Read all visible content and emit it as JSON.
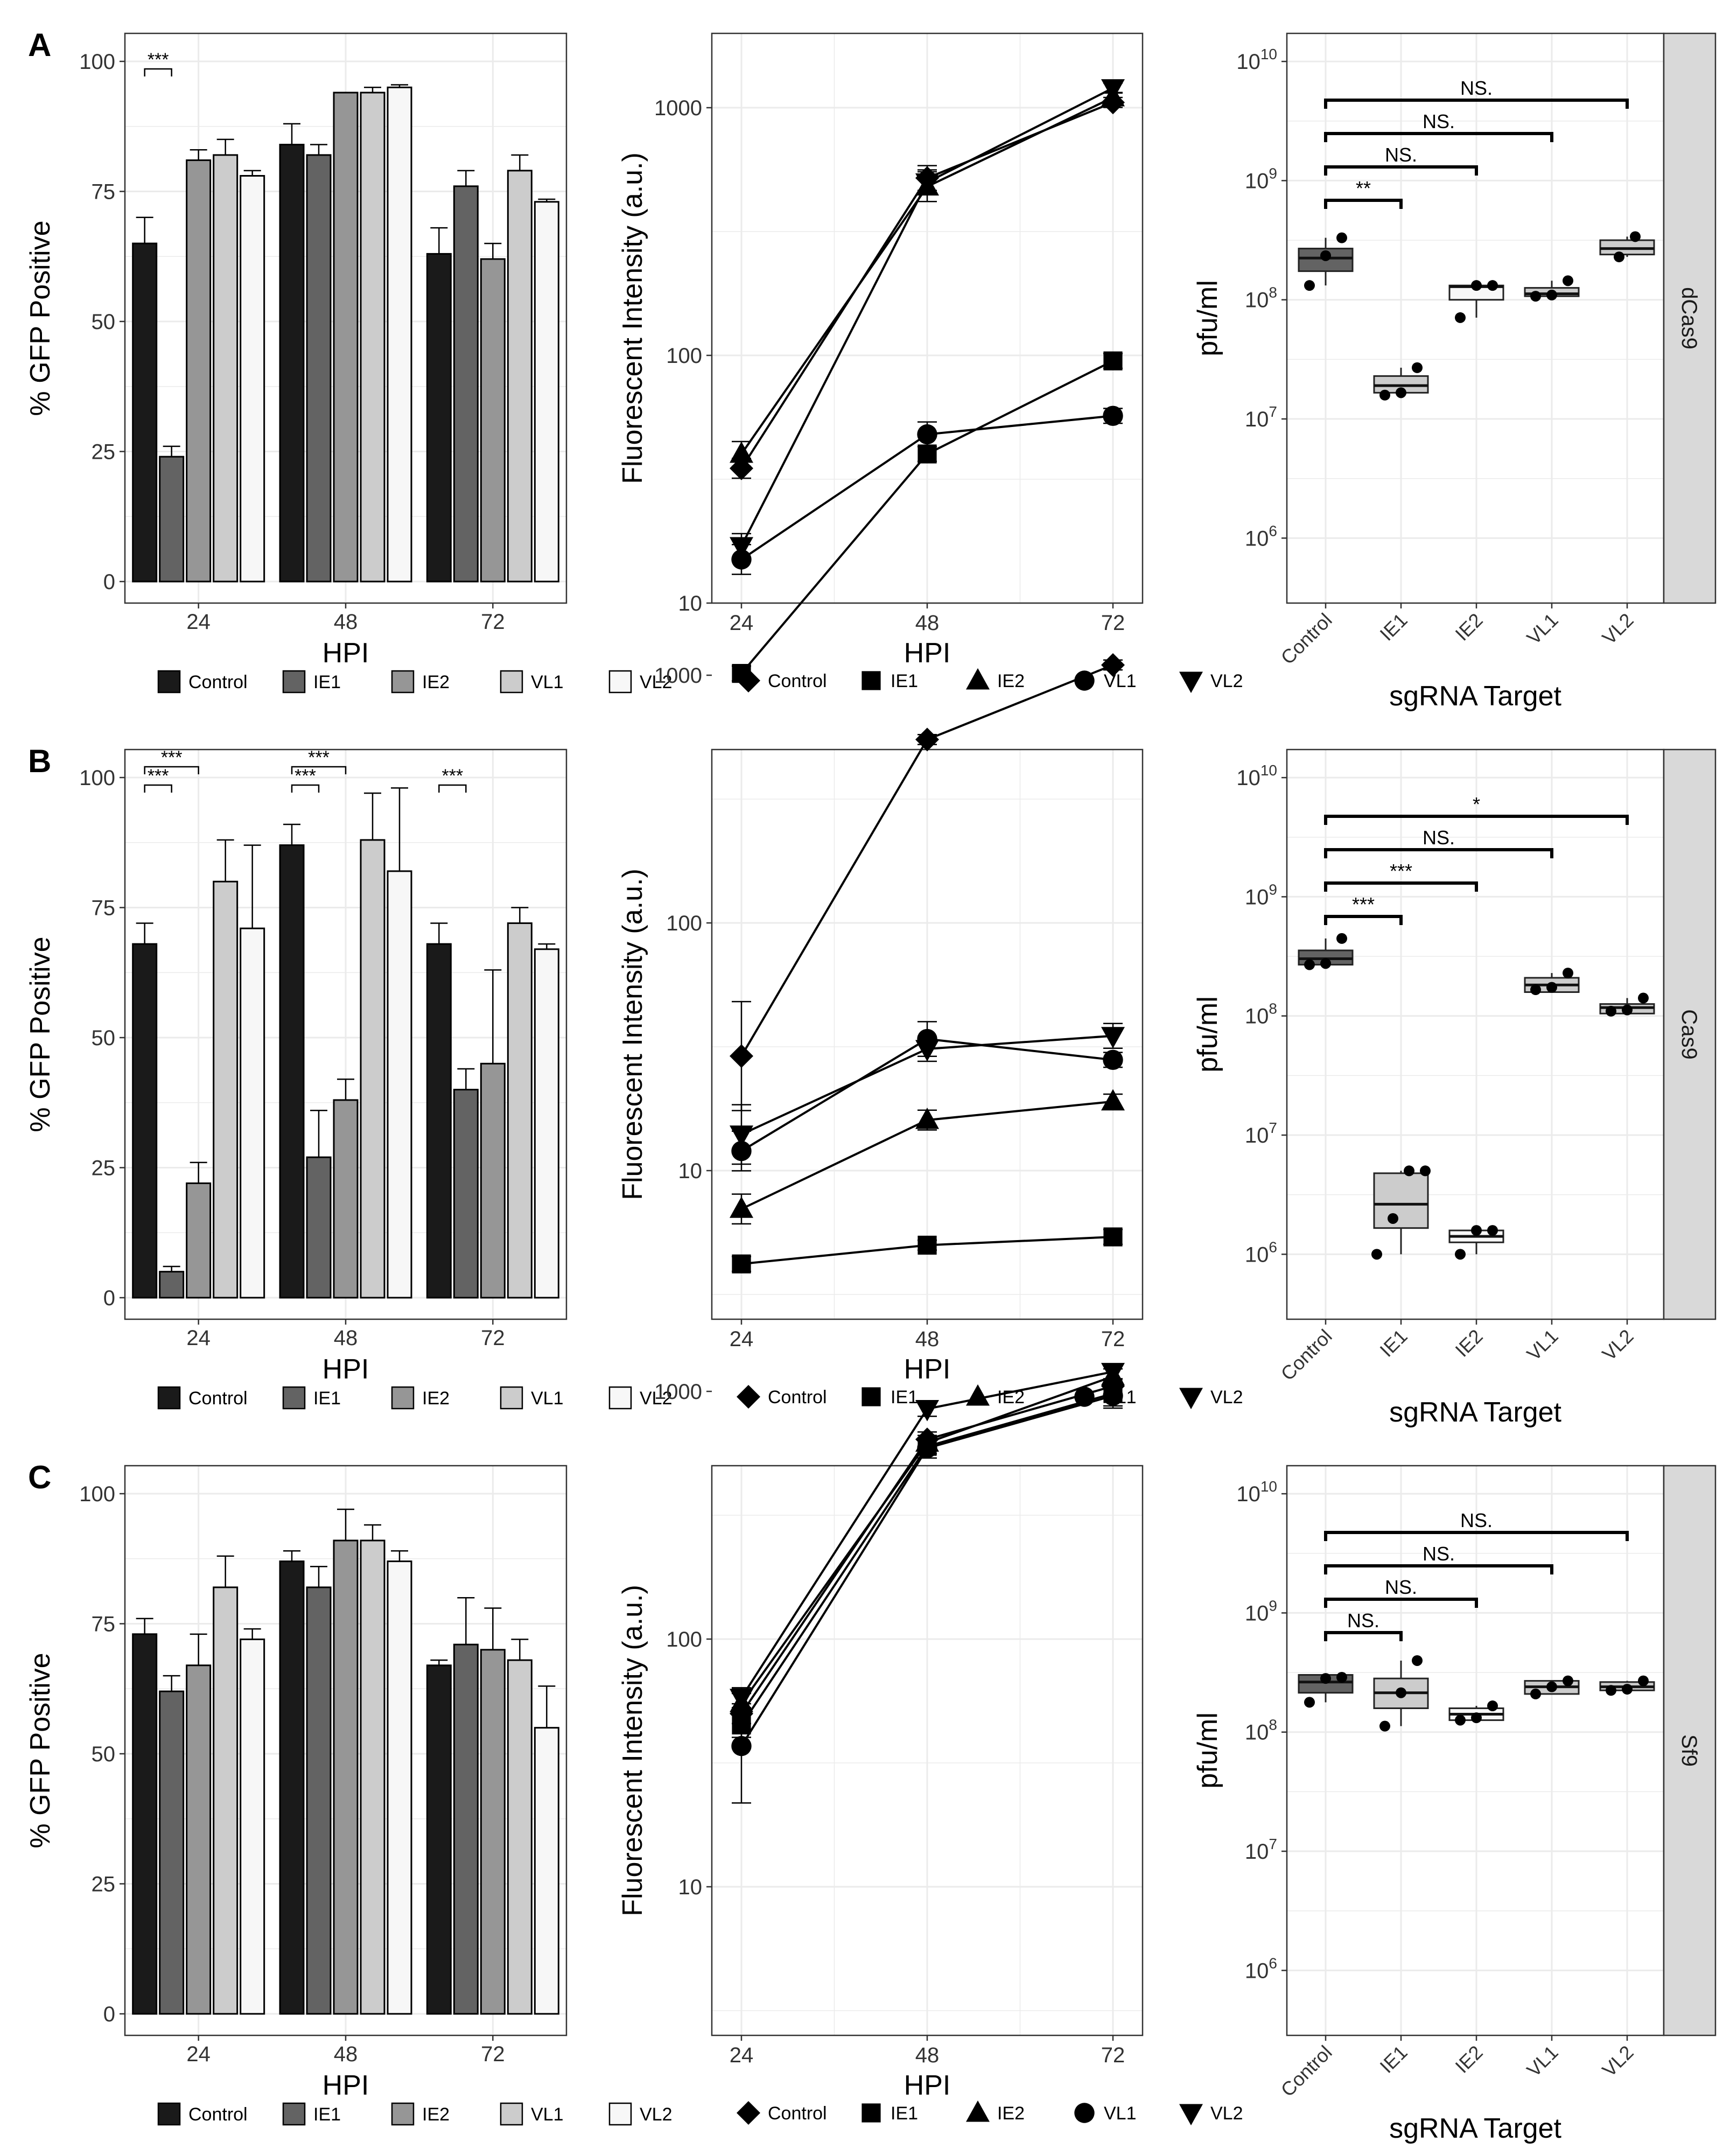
{
  "figure": {
    "row_labels": [
      "A",
      "B",
      "C"
    ],
    "facet_strips": [
      "dCas9",
      "Cas9",
      "Sf9"
    ]
  },
  "colors": {
    "Control": "#1a1a1a",
    "IE1": "#636363",
    "IE2": "#969696",
    "VL1": "#cccccc",
    "VL2": "#f7f7f7",
    "grid": "#ebebeb",
    "strip": "#d9d9d9"
  },
  "chart_data": [
    {
      "id": "A-bar",
      "type": "bar",
      "row": 0,
      "ylabel": "% GFP Positive",
      "xlabel": "HPI",
      "categories": [
        "24",
        "48",
        "72"
      ],
      "ylim": [
        0,
        100
      ],
      "yticks": [
        "0",
        "25",
        "50",
        "75",
        "100"
      ],
      "legend": [
        "Control",
        "IE1",
        "IE2",
        "VL1",
        "VL2"
      ],
      "series": [
        {
          "name": "Control",
          "values": [
            65,
            84,
            63
          ],
          "errors": [
            5,
            4,
            5
          ]
        },
        {
          "name": "IE1",
          "values": [
            24,
            82,
            76
          ],
          "errors": [
            2,
            2,
            3
          ]
        },
        {
          "name": "IE2",
          "values": [
            81,
            94,
            62
          ],
          "errors": [
            2,
            0,
            3
          ]
        },
        {
          "name": "VL1",
          "values": [
            82,
            94,
            79
          ],
          "errors": [
            3,
            1,
            3
          ]
        },
        {
          "name": "VL2",
          "values": [
            78,
            95,
            73
          ],
          "errors": [
            1,
            0.5,
            0.5
          ]
        }
      ],
      "annotations": [
        {
          "text": "***",
          "category": 0,
          "from": 0,
          "to": 1,
          "level": 1
        }
      ]
    },
    {
      "id": "A-line",
      "type": "line",
      "row": 0,
      "ylabel": "Fluorescent Intensity (a.u.)",
      "xlabel": "HPI",
      "x": [
        "24",
        "48",
        "72"
      ],
      "yscale": "log",
      "ylim": [
        1,
        3.3
      ],
      "yticks": [
        "10",
        "100",
        "1000"
      ],
      "legend": [
        "Control",
        "IE1",
        "IE2",
        "VL1",
        "VL2"
      ],
      "series": [
        {
          "name": "Control",
          "shape": "diamond",
          "values": [
            35,
            520,
            1050
          ],
          "err_log": [
            0.04,
            0.05,
            0.02
          ]
        },
        {
          "name": "IE1",
          "shape": "square",
          "values": [
            5.2,
            40,
            95
          ],
          "err_log": [
            0.03,
            0.03,
            0.03
          ]
        },
        {
          "name": "IE2",
          "shape": "triangle",
          "values": [
            40,
            480,
            1100
          ],
          "err_log": [
            0.05,
            0.06,
            0.02
          ]
        },
        {
          "name": "VL1",
          "shape": "circle",
          "values": [
            15,
            48,
            57
          ],
          "err_log": [
            0.06,
            0.05,
            0.03
          ]
        },
        {
          "name": "VL2",
          "shape": "triangle-down",
          "values": [
            17,
            500,
            1200
          ],
          "err_log": [
            0.05,
            0.05,
            0.02
          ]
        }
      ]
    },
    {
      "id": "A-box",
      "type": "box",
      "row": 0,
      "ylabel": "pfu/ml",
      "xlabel": "sgRNA Target",
      "yscale": "log",
      "ylim": [
        5.5,
        10.1
      ],
      "ytick_exponents": [
        "6",
        "7",
        "8",
        "9",
        "10"
      ],
      "ytick_base": "10",
      "categories": [
        "Control",
        "IE1",
        "IE2",
        "VL1",
        "VL2"
      ],
      "boxes": [
        {
          "name": "Control",
          "q1": 8.24,
          "median": 8.35,
          "q3": 8.43,
          "points": [
            8.12,
            8.37,
            8.52
          ]
        },
        {
          "name": "IE1",
          "q1": 7.22,
          "median": 7.28,
          "q3": 7.36,
          "points": [
            7.2,
            7.22,
            7.43
          ]
        },
        {
          "name": "IE2",
          "q1": 8.0,
          "median": 8.11,
          "q3": 8.12,
          "points": [
            7.85,
            8.12,
            8.12
          ]
        },
        {
          "name": "VL1",
          "q1": 8.03,
          "median": 8.05,
          "q3": 8.1,
          "points": [
            8.03,
            8.04,
            8.16
          ]
        },
        {
          "name": "VL2",
          "q1": 8.38,
          "median": 8.43,
          "q3": 8.5,
          "points": [
            8.36,
            8.53
          ]
        }
      ],
      "annotations": [
        {
          "text": "**",
          "to": 1,
          "level": 0
        },
        {
          "text": "NS.",
          "to": 2,
          "level": 1
        },
        {
          "text": "NS.",
          "to": 3,
          "level": 2
        },
        {
          "text": "NS.",
          "to": 4,
          "level": 3
        }
      ]
    },
    {
      "id": "B-bar",
      "type": "bar",
      "row": 1,
      "ylabel": "% GFP Positive",
      "xlabel": "HPI",
      "categories": [
        "24",
        "48",
        "72"
      ],
      "ylim": [
        0,
        100
      ],
      "yticks": [
        "0",
        "25",
        "50",
        "75",
        "100"
      ],
      "legend": [
        "Control",
        "IE1",
        "IE2",
        "VL1",
        "VL2"
      ],
      "series": [
        {
          "name": "Control",
          "values": [
            68,
            87,
            68
          ],
          "errors": [
            4,
            4,
            4
          ]
        },
        {
          "name": "IE1",
          "values": [
            5,
            27,
            40
          ],
          "errors": [
            1,
            9,
            4
          ]
        },
        {
          "name": "IE2",
          "values": [
            22,
            38,
            45
          ],
          "errors": [
            4,
            4,
            18
          ]
        },
        {
          "name": "VL1",
          "values": [
            80,
            88,
            72
          ],
          "errors": [
            8,
            9,
            3
          ]
        },
        {
          "name": "VL2",
          "values": [
            71,
            82,
            67
          ],
          "errors": [
            16,
            16,
            1
          ]
        }
      ],
      "annotations": [
        {
          "text": "***",
          "category": 0,
          "from": 0,
          "to": 1,
          "level": 1
        },
        {
          "text": "***",
          "category": 0,
          "from": 0,
          "to": 2,
          "level": 2
        },
        {
          "text": "***",
          "category": 1,
          "from": 0,
          "to": 1,
          "level": 1
        },
        {
          "text": "***",
          "category": 1,
          "from": 0,
          "to": 2,
          "level": 2
        },
        {
          "text": "***",
          "category": 2,
          "from": 0,
          "to": 1,
          "level": 1
        }
      ]
    },
    {
      "id": "B-line",
      "type": "line",
      "row": 1,
      "ylabel": "Fluorescent Intensity (a.u.)",
      "xlabel": "HPI",
      "x": [
        "24",
        "48",
        "72"
      ],
      "yscale": "log",
      "ylim": [
        0.4,
        2.7
      ],
      "yticks": [
        "10",
        "100",
        "1000"
      ],
      "legend": [
        "Control",
        "IE1",
        "IE2",
        "VL1",
        "VL2"
      ],
      "series": [
        {
          "name": "Control",
          "shape": "diamond",
          "values": [
            29,
            550,
            1100
          ],
          "err_log": [
            0.22,
            0.02,
            0.02
          ]
        },
        {
          "name": "IE1",
          "shape": "square",
          "values": [
            4.2,
            5.0,
            5.4
          ],
          "err_log": [
            0.03,
            0.02,
            0.03
          ]
        },
        {
          "name": "IE2",
          "shape": "triangle",
          "values": [
            7,
            16,
            19
          ],
          "err_log": [
            0.06,
            0.04,
            0.03
          ]
        },
        {
          "name": "VL1",
          "shape": "circle",
          "values": [
            12,
            34,
            28
          ],
          "err_log": [
            0.08,
            0.07,
            0.03
          ]
        },
        {
          "name": "VL2",
          "shape": "triangle-down",
          "values": [
            14,
            31,
            35
          ],
          "err_log": [
            0.12,
            0.05,
            0.05
          ]
        }
      ]
    },
    {
      "id": "B-box",
      "type": "box",
      "row": 1,
      "ylabel": "pfu/ml",
      "xlabel": "sgRNA Target",
      "yscale": "log",
      "ylim": [
        5.5,
        10.1
      ],
      "ytick_exponents": [
        "6",
        "7",
        "8",
        "9",
        "10"
      ],
      "ytick_base": "10",
      "categories": [
        "Control",
        "IE1",
        "IE2",
        "VL1",
        "VL2"
      ],
      "boxes": [
        {
          "name": "Control",
          "q1": 8.43,
          "median": 8.48,
          "q3": 8.55,
          "points": [
            8.43,
            8.44,
            8.65
          ]
        },
        {
          "name": "IE1",
          "q1": 6.22,
          "median": 6.42,
          "q3": 6.68,
          "points": [
            6.0,
            6.3,
            6.7,
            6.7
          ]
        },
        {
          "name": "IE2",
          "q1": 6.1,
          "median": 6.15,
          "q3": 6.2,
          "points": [
            6.0,
            6.2,
            6.2
          ]
        },
        {
          "name": "VL1",
          "q1": 8.2,
          "median": 8.26,
          "q3": 8.32,
          "points": [
            8.22,
            8.24,
            8.36
          ]
        },
        {
          "name": "VL2",
          "q1": 8.02,
          "median": 8.07,
          "q3": 8.1,
          "points": [
            8.04,
            8.05,
            8.15
          ]
        }
      ],
      "annotations": [
        {
          "text": "***",
          "to": 1,
          "level": 0
        },
        {
          "text": "***",
          "to": 2,
          "level": 1
        },
        {
          "text": "NS.",
          "to": 3,
          "level": 2
        },
        {
          "text": "*",
          "to": 4,
          "level": 3
        }
      ]
    },
    {
      "id": "C-bar",
      "type": "bar",
      "row": 2,
      "ylabel": "% GFP Positive",
      "xlabel": "HPI",
      "categories": [
        "24",
        "48",
        "72"
      ],
      "ylim": [
        0,
        100
      ],
      "yticks": [
        "0",
        "25",
        "50",
        "75",
        "100"
      ],
      "legend": [
        "Control",
        "IE1",
        "IE2",
        "VL1",
        "VL2"
      ],
      "series": [
        {
          "name": "Control",
          "values": [
            73,
            87,
            67
          ],
          "errors": [
            3,
            2,
            1
          ]
        },
        {
          "name": "IE1",
          "values": [
            62,
            82,
            71
          ],
          "errors": [
            3,
            4,
            9
          ]
        },
        {
          "name": "IE2",
          "values": [
            67,
            91,
            70
          ],
          "errors": [
            6,
            6,
            8
          ]
        },
        {
          "name": "VL1",
          "values": [
            82,
            91,
            68
          ],
          "errors": [
            6,
            3,
            4
          ]
        },
        {
          "name": "VL2",
          "values": [
            72,
            87,
            55
          ],
          "errors": [
            2,
            2,
            8
          ]
        }
      ],
      "annotations": []
    },
    {
      "id": "C-line",
      "type": "line",
      "row": 2,
      "ylabel": "Fluorescent Intensity (a.u.)",
      "xlabel": "HPI",
      "x": [
        "24",
        "48",
        "72"
      ],
      "yscale": "log",
      "ylim": [
        0.4,
        2.7
      ],
      "yticks": [
        "10",
        "100",
        "1000"
      ],
      "legend": [
        "Control",
        "IE1",
        "IE2",
        "VL1",
        "VL2"
      ],
      "series": [
        {
          "name": "Control",
          "shape": "diamond",
          "values": [
            50,
            640,
            1050
          ],
          "err_log": [
            0.04,
            0.03,
            0.03
          ]
        },
        {
          "name": "IE1",
          "shape": "square",
          "values": [
            45,
            600,
            980
          ],
          "err_log": [
            0.05,
            0.03,
            0.05
          ]
        },
        {
          "name": "IE2",
          "shape": "triangle",
          "values": [
            55,
            620,
            1150
          ],
          "err_log": [
            0.04,
            0.03,
            0.03
          ]
        },
        {
          "name": "VL1",
          "shape": "circle",
          "values": [
            37,
            590,
            960
          ],
          "err_log": [
            0.23,
            0.04,
            0.05
          ]
        },
        {
          "name": "VL2",
          "shape": "triangle-down",
          "values": [
            58,
            850,
            1200
          ],
          "err_log": [
            0.04,
            0.03,
            0.03
          ]
        }
      ]
    },
    {
      "id": "C-box",
      "type": "box",
      "row": 2,
      "ylabel": "pfu/ml",
      "xlabel": "sgRNA Target",
      "yscale": "log",
      "ylim": [
        5.5,
        10.1
      ],
      "ytick_exponents": [
        "6",
        "7",
        "8",
        "9",
        "10"
      ],
      "ytick_base": "10",
      "categories": [
        "Control",
        "IE1",
        "IE2",
        "VL1",
        "VL2"
      ],
      "boxes": [
        {
          "name": "Control",
          "q1": 8.33,
          "median": 8.42,
          "q3": 8.48,
          "points": [
            8.25,
            8.45,
            8.46
          ]
        },
        {
          "name": "IE1",
          "q1": 8.2,
          "median": 8.33,
          "q3": 8.45,
          "points": [
            8.05,
            8.33,
            8.6
          ]
        },
        {
          "name": "IE2",
          "q1": 8.1,
          "median": 8.15,
          "q3": 8.2,
          "points": [
            8.1,
            8.12,
            8.22
          ]
        },
        {
          "name": "VL1",
          "q1": 8.32,
          "median": 8.38,
          "q3": 8.43,
          "points": [
            8.32,
            8.38,
            8.43
          ]
        },
        {
          "name": "VL2",
          "q1": 8.35,
          "median": 8.38,
          "q3": 8.42,
          "points": [
            8.35,
            8.36,
            8.43
          ]
        }
      ],
      "annotations": [
        {
          "text": "NS.",
          "to": 1,
          "level": 0
        },
        {
          "text": "NS.",
          "to": 2,
          "level": 1
        },
        {
          "text": "NS.",
          "to": 3,
          "level": 2
        },
        {
          "text": "NS.",
          "to": 4,
          "level": 3
        }
      ]
    }
  ]
}
